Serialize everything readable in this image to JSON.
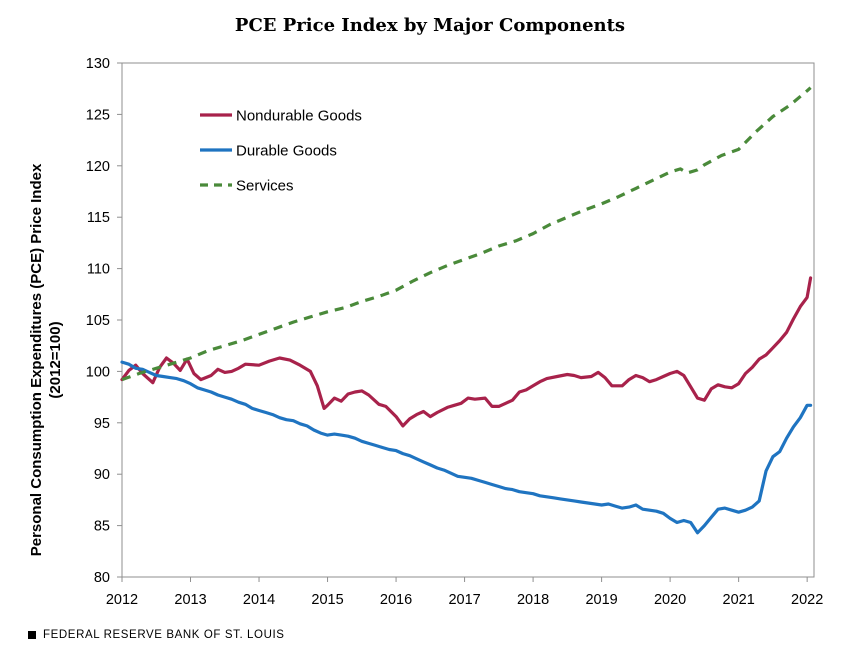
{
  "chart_data": {
    "type": "line",
    "title": "PCE Price Index by Major Components",
    "ylabel": "Personal Consumption Expenditures (PCE) Price Index (2012=100)",
    "xlabel": "",
    "xlim": [
      2012,
      2022.1
    ],
    "ylim": [
      80,
      130
    ],
    "x_ticks": [
      "2012",
      "2013",
      "2014",
      "2015",
      "2016",
      "2017",
      "2018",
      "2019",
      "2020",
      "2021",
      "2022"
    ],
    "y_ticks": [
      "80",
      "85",
      "90",
      "95",
      "100",
      "105",
      "110",
      "115",
      "120",
      "125",
      "130"
    ],
    "grid": false,
    "legend_position": "upper-left",
    "series": [
      {
        "name": "Nondurable Goods",
        "color": "#a8224b",
        "dash": "solid",
        "x": [
          2012.0,
          2012.1,
          2012.2,
          2012.3,
          2012.45,
          2012.55,
          2012.65,
          2012.75,
          2012.85,
          2012.95,
          2013.05,
          2013.15,
          2013.3,
          2013.4,
          2013.5,
          2013.6,
          2013.7,
          2013.8,
          2014.0,
          2014.15,
          2014.3,
          2014.45,
          2014.6,
          2014.75,
          2014.85,
          2014.95,
          2015.0,
          2015.1,
          2015.2,
          2015.3,
          2015.4,
          2015.5,
          2015.6,
          2015.75,
          2015.85,
          2016.0,
          2016.1,
          2016.2,
          2016.3,
          2016.4,
          2016.5,
          2016.6,
          2016.75,
          2016.85,
          2016.95,
          2017.05,
          2017.15,
          2017.3,
          2017.4,
          2017.5,
          2017.6,
          2017.7,
          2017.8,
          2017.9,
          2018.0,
          2018.1,
          2018.2,
          2018.35,
          2018.5,
          2018.6,
          2018.7,
          2018.85,
          2018.95,
          2019.05,
          2019.15,
          2019.3,
          2019.4,
          2019.5,
          2019.6,
          2019.7,
          2019.8,
          2019.9,
          2020.0,
          2020.1,
          2020.2,
          2020.3,
          2020.4,
          2020.5,
          2020.6,
          2020.7,
          2020.8,
          2020.9,
          2021.0,
          2021.1,
          2021.2,
          2021.3,
          2021.4,
          2021.5,
          2021.6,
          2021.7,
          2021.8,
          2021.9,
          2022.0,
          2022.05
        ],
        "y": [
          99.2,
          100.1,
          100.6,
          99.8,
          98.9,
          100.4,
          101.3,
          100.8,
          100.1,
          101.2,
          99.8,
          99.2,
          99.6,
          100.2,
          99.9,
          100.0,
          100.3,
          100.7,
          100.6,
          101.0,
          101.3,
          101.1,
          100.6,
          100.0,
          98.6,
          96.4,
          96.7,
          97.4,
          97.1,
          97.8,
          98.0,
          98.1,
          97.7,
          96.8,
          96.6,
          95.6,
          94.7,
          95.4,
          95.8,
          96.1,
          95.6,
          96.0,
          96.5,
          96.7,
          96.9,
          97.4,
          97.3,
          97.4,
          96.6,
          96.6,
          96.9,
          97.2,
          98.0,
          98.2,
          98.6,
          99.0,
          99.3,
          99.5,
          99.7,
          99.6,
          99.4,
          99.5,
          99.9,
          99.4,
          98.6,
          98.6,
          99.2,
          99.6,
          99.4,
          99.0,
          99.2,
          99.5,
          99.8,
          100.0,
          99.6,
          98.5,
          97.4,
          97.2,
          98.3,
          98.7,
          98.5,
          98.4,
          98.8,
          99.8,
          100.4,
          101.2,
          101.6,
          102.3,
          103.0,
          103.8,
          105.1,
          106.3,
          107.2,
          109.1
        ]
      },
      {
        "name": "Durable Goods",
        "color": "#1f74c1",
        "dash": "solid",
        "x": [
          2012.0,
          2012.1,
          2012.2,
          2012.3,
          2012.4,
          2012.5,
          2012.6,
          2012.7,
          2012.8,
          2012.9,
          2013.0,
          2013.1,
          2013.2,
          2013.3,
          2013.4,
          2013.5,
          2013.6,
          2013.7,
          2013.8,
          2013.9,
          2014.0,
          2014.1,
          2014.2,
          2014.3,
          2014.4,
          2014.5,
          2014.6,
          2014.7,
          2014.8,
          2014.9,
          2015.0,
          2015.1,
          2015.2,
          2015.3,
          2015.4,
          2015.5,
          2015.6,
          2015.7,
          2015.8,
          2015.9,
          2016.0,
          2016.1,
          2016.2,
          2016.3,
          2016.4,
          2016.5,
          2016.6,
          2016.7,
          2016.8,
          2016.9,
          2017.0,
          2017.1,
          2017.2,
          2017.3,
          2017.4,
          2017.5,
          2017.6,
          2017.7,
          2017.8,
          2017.9,
          2018.0,
          2018.1,
          2018.2,
          2018.3,
          2018.4,
          2018.5,
          2018.6,
          2018.7,
          2018.8,
          2018.9,
          2019.0,
          2019.1,
          2019.2,
          2019.3,
          2019.4,
          2019.5,
          2019.6,
          2019.7,
          2019.8,
          2019.9,
          2020.0,
          2020.1,
          2020.2,
          2020.3,
          2020.4,
          2020.5,
          2020.6,
          2020.7,
          2020.8,
          2020.9,
          2021.0,
          2021.1,
          2021.2,
          2021.3,
          2021.4,
          2021.5,
          2021.6,
          2021.7,
          2021.8,
          2021.9,
          2022.0,
          2022.05
        ],
        "y": [
          100.9,
          100.7,
          100.3,
          100.2,
          99.9,
          99.6,
          99.5,
          99.4,
          99.3,
          99.1,
          98.8,
          98.4,
          98.2,
          98.0,
          97.7,
          97.5,
          97.3,
          97.0,
          96.8,
          96.4,
          96.2,
          96.0,
          95.8,
          95.5,
          95.3,
          95.2,
          94.9,
          94.7,
          94.3,
          94.0,
          93.8,
          93.9,
          93.8,
          93.7,
          93.5,
          93.2,
          93.0,
          92.8,
          92.6,
          92.4,
          92.3,
          92.0,
          91.8,
          91.5,
          91.2,
          90.9,
          90.6,
          90.4,
          90.1,
          89.8,
          89.7,
          89.6,
          89.4,
          89.2,
          89.0,
          88.8,
          88.6,
          88.5,
          88.3,
          88.2,
          88.1,
          87.9,
          87.8,
          87.7,
          87.6,
          87.5,
          87.4,
          87.3,
          87.2,
          87.1,
          87.0,
          87.1,
          86.9,
          86.7,
          86.8,
          87.0,
          86.6,
          86.5,
          86.4,
          86.2,
          85.7,
          85.3,
          85.5,
          85.3,
          84.3,
          85.0,
          85.8,
          86.6,
          86.7,
          86.5,
          86.3,
          86.5,
          86.8,
          87.4,
          90.3,
          91.7,
          92.2,
          93.5,
          94.6,
          95.5,
          96.7,
          96.7
        ]
      },
      {
        "name": "Services",
        "color": "#4a8a3a",
        "dash": "dashed",
        "x": [
          2012.0,
          2012.25,
          2012.5,
          2012.75,
          2013.0,
          2013.25,
          2013.5,
          2013.75,
          2014.0,
          2014.25,
          2014.5,
          2014.75,
          2015.0,
          2015.25,
          2015.5,
          2015.75,
          2016.0,
          2016.25,
          2016.5,
          2016.75,
          2017.0,
          2017.25,
          2017.5,
          2017.75,
          2018.0,
          2018.25,
          2018.5,
          2018.75,
          2019.0,
          2019.25,
          2019.5,
          2019.75,
          2020.0,
          2020.15,
          2020.25,
          2020.4,
          2020.5,
          2020.75,
          2021.0,
          2021.25,
          2021.5,
          2021.75,
          2022.0,
          2022.05
        ],
        "y": [
          99.2,
          99.8,
          100.3,
          100.8,
          101.3,
          102.0,
          102.5,
          103.0,
          103.6,
          104.2,
          104.8,
          105.3,
          105.8,
          106.2,
          106.8,
          107.3,
          107.9,
          108.8,
          109.6,
          110.3,
          110.9,
          111.5,
          112.2,
          112.7,
          113.4,
          114.3,
          115.0,
          115.7,
          116.3,
          117.0,
          117.8,
          118.6,
          119.4,
          119.7,
          119.3,
          119.6,
          120.1,
          121.0,
          121.6,
          123.3,
          124.8,
          125.9,
          127.3,
          127.6
        ]
      }
    ]
  },
  "footer": {
    "source": "FEDERAL RESERVE BANK OF ST. LOUIS"
  }
}
